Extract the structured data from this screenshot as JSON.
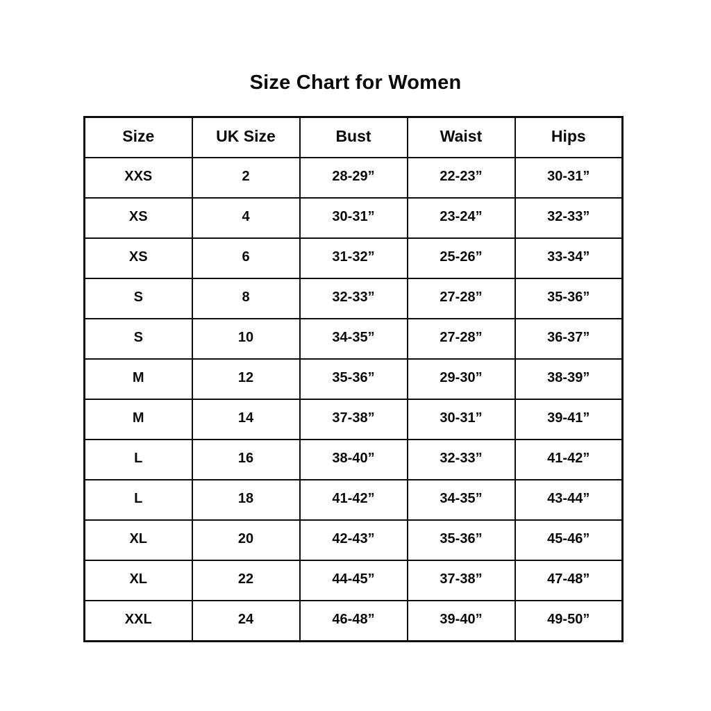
{
  "page": {
    "title": "Size Chart for Women"
  },
  "chart_data": {
    "type": "table",
    "title": "Size Chart for Women",
    "columns": [
      "Size",
      "UK Size",
      "Bust",
      "Waist",
      "Hips"
    ],
    "rows": [
      [
        "XXS",
        "2",
        "28-29”",
        "22-23”",
        "30-31”"
      ],
      [
        "XS",
        "4",
        "30-31”",
        "23-24”",
        "32-33”"
      ],
      [
        "XS",
        "6",
        "31-32”",
        "25-26”",
        "33-34”"
      ],
      [
        "S",
        "8",
        "32-33”",
        "27-28”",
        "35-36”"
      ],
      [
        "S",
        "10",
        "34-35”",
        "27-28”",
        "36-37”"
      ],
      [
        "M",
        "12",
        "35-36”",
        "29-30”",
        "38-39”"
      ],
      [
        "M",
        "14",
        "37-38”",
        "30-31”",
        "39-41”"
      ],
      [
        "L",
        "16",
        "38-40”",
        "32-33”",
        "41-42”"
      ],
      [
        "L",
        "18",
        "41-42”",
        "34-35”",
        "43-44”"
      ],
      [
        "XL",
        "20",
        "42-43”",
        "35-36”",
        "45-46”"
      ],
      [
        "XL",
        "22",
        "44-45”",
        "37-38”",
        "47-48”"
      ],
      [
        "XXL",
        "24",
        "46-48”",
        "39-40”",
        "49-50”"
      ]
    ],
    "layout": {
      "border_color": "#0d0d0d",
      "background_color": "#ffffff",
      "text_color": "#0a0a0a"
    }
  }
}
